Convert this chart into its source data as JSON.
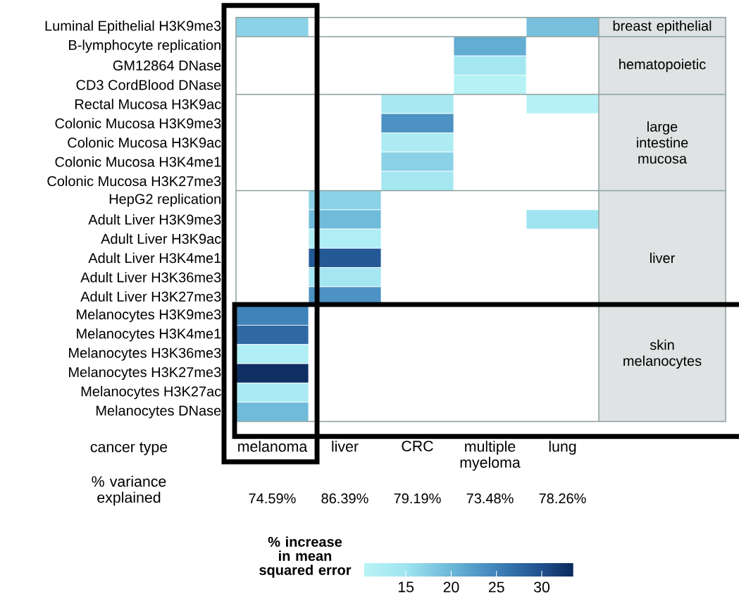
{
  "chart_data": {
    "type": "heatmap",
    "categories": [
      "melanoma",
      "liver",
      "CRC",
      "multiple myeloma",
      "lung"
    ],
    "y_categories": [
      "Luminal Epithelial H3K9me3",
      "B-lymphocyte replication",
      "GM12864 DNase",
      "CD3 CordBlood DNase",
      "Rectal Mucosa H3K9ac",
      "Colonic Mucosa H3K9me3",
      "Colonic Mucosa H3K9ac",
      "Colonic Mucosa H3K4me1",
      "Colonic Mucosa H3K27me3",
      "HepG2 replication",
      "Adult Liver H3K9me3",
      "Adult Liver H3K9ac",
      "Adult Liver H3K4me1",
      "Adult Liver H3K36me3",
      "Adult Liver H3K27me3",
      "Melanocytes H3K9me3",
      "Melanocytes H3K4me1",
      "Melanocytes H3K36me3",
      "Melanocytes H3K27me3",
      "Melanocytes H3K27ac",
      "Melanocytes DNase"
    ],
    "cells": [
      [
        17,
        null,
        null,
        null,
        19
      ],
      [
        null,
        null,
        null,
        21,
        null
      ],
      [
        null,
        null,
        null,
        14,
        null
      ],
      [
        null,
        null,
        null,
        11,
        null
      ],
      [
        null,
        null,
        13.5,
        null,
        11
      ],
      [
        null,
        null,
        23.5,
        null,
        null
      ],
      [
        null,
        null,
        12.5,
        null,
        null
      ],
      [
        null,
        null,
        17,
        null,
        null
      ],
      [
        null,
        null,
        14,
        null,
        null
      ],
      [
        null,
        17,
        null,
        null,
        null
      ],
      [
        null,
        19.5,
        null,
        null,
        15
      ],
      [
        null,
        12,
        null,
        null,
        null
      ],
      [
        null,
        29,
        null,
        null,
        null
      ],
      [
        null,
        14,
        null,
        null,
        null
      ],
      [
        null,
        23.5,
        null,
        null,
        null
      ],
      [
        25,
        null,
        null,
        null,
        null
      ],
      [
        27.5,
        null,
        null,
        null,
        null
      ],
      [
        12,
        null,
        null,
        null,
        null
      ],
      [
        33,
        null,
        null,
        null,
        null
      ],
      [
        13,
        null,
        null,
        null,
        null
      ],
      [
        19.5,
        null,
        null,
        null,
        null
      ]
    ],
    "clim": [
      10.4,
      33.5
    ],
    "cticks": [
      15,
      20,
      25,
      30
    ],
    "clabel": "% increase in mean squared error",
    "xlabel": "cancer type",
    "y2_categories": [
      "breast epithelial",
      null,
      "hematopoietic",
      null,
      null,
      null,
      "large intestine mucosa",
      null,
      null,
      null,
      null,
      null,
      "liver",
      null,
      null,
      null,
      null,
      "skin melanocytes",
      null,
      null,
      null
    ],
    "grid": true,
    "annotations": [
      "% variance explained",
      "74.59%",
      "86.39%",
      "79.19%",
      "73.48%",
      "78.26%"
    ]
  }
}
